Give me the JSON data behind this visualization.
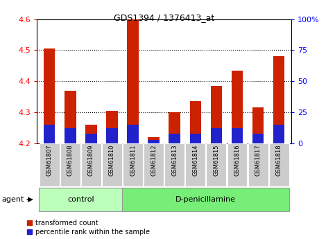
{
  "title": "GDS1394 / 1376413_at",
  "samples": [
    "GSM61807",
    "GSM61808",
    "GSM61809",
    "GSM61810",
    "GSM61811",
    "GSM61812",
    "GSM61813",
    "GSM61814",
    "GSM61815",
    "GSM61816",
    "GSM61817",
    "GSM61818"
  ],
  "red_values": [
    4.505,
    4.37,
    4.26,
    4.305,
    4.6,
    4.22,
    4.3,
    4.335,
    4.385,
    4.435,
    4.315,
    4.48
  ],
  "percentile_values": [
    15,
    12,
    8,
    12,
    15,
    3,
    8,
    8,
    12,
    12,
    8,
    15
  ],
  "ymin": 4.2,
  "ymax": 4.6,
  "y2min": 0,
  "y2max": 100,
  "yticks": [
    4.2,
    4.3,
    4.4,
    4.5,
    4.6
  ],
  "y2ticks": [
    0,
    25,
    50,
    75,
    100
  ],
  "y2ticklabels": [
    "0",
    "25",
    "50",
    "75",
    "100%"
  ],
  "bar_color_red": "#CC2200",
  "bar_color_blue": "#2222CC",
  "bar_width": 0.55,
  "legend_red": "transformed count",
  "legend_blue": "percentile rank within the sample",
  "group_label": "agent",
  "group1_label": "control",
  "group2_label": "D-penicillamine",
  "ctrl_color": "#BBFFBB",
  "dpen_color": "#77EE77",
  "tick_bg": "#CCCCCC",
  "n_control": 4,
  "n_total": 12
}
